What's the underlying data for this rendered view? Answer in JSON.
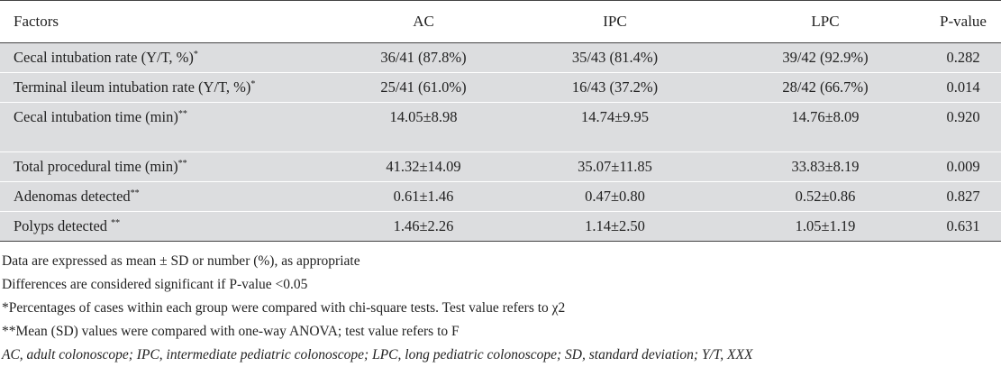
{
  "table": {
    "headers": [
      "Factors",
      "AC",
      "IPC",
      "LPC",
      "P-value"
    ],
    "rows": [
      {
        "factor": "Cecal intubation rate (Y/T, %)",
        "sup": "*",
        "ac": "36/41 (87.8%)",
        "ipc": "35/43 (81.4%)",
        "lpc": "39/42 (92.9%)",
        "p": "0.282"
      },
      {
        "factor": "Terminal ileum intubation rate (Y/T, %)",
        "sup": "*",
        "ac": "25/41 (61.0%)",
        "ipc": "16/43 (37.2%)",
        "lpc": "28/42 (66.7%)",
        "p": "0.014"
      },
      {
        "factor": "Cecal intubation time (min)",
        "sup": "**",
        "ac": "14.05±8.98",
        "ipc": "14.74±9.95",
        "lpc": "14.76±8.09",
        "p": "0.920"
      },
      {
        "factor": "Total procedural time (min)",
        "sup": "**",
        "ac": "41.32±14.09",
        "ipc": "35.07±11.85",
        "lpc": "33.83±8.19",
        "p": "0.009"
      },
      {
        "factor": "Adenomas detected",
        "sup": "**",
        "ac": "0.61±1.46",
        "ipc": "0.47±0.80",
        "lpc": "0.52±0.86",
        "p": "0.827"
      },
      {
        "factor": "Polyps detected ",
        "sup": "**",
        "ac": "1.46±2.26",
        "ipc": "1.14±2.50",
        "lpc": "1.05±1.19",
        "p": "0.631"
      }
    ]
  },
  "notes": [
    "Data are expressed as mean ± SD or number (%), as appropriate",
    "Differences are considered significant if P-value <0.05",
    "*Percentages of cases within each group were compared with chi-square tests. Test value refers to χ2",
    "**Mean (SD) values were compared with one-way ANOVA; test value refers to F",
    "AC, adult colonoscope; IPC, intermediate pediatric colonoscope; LPC, long pediatric colonoscope; SD, standard deviation; Y/T, XXX"
  ]
}
